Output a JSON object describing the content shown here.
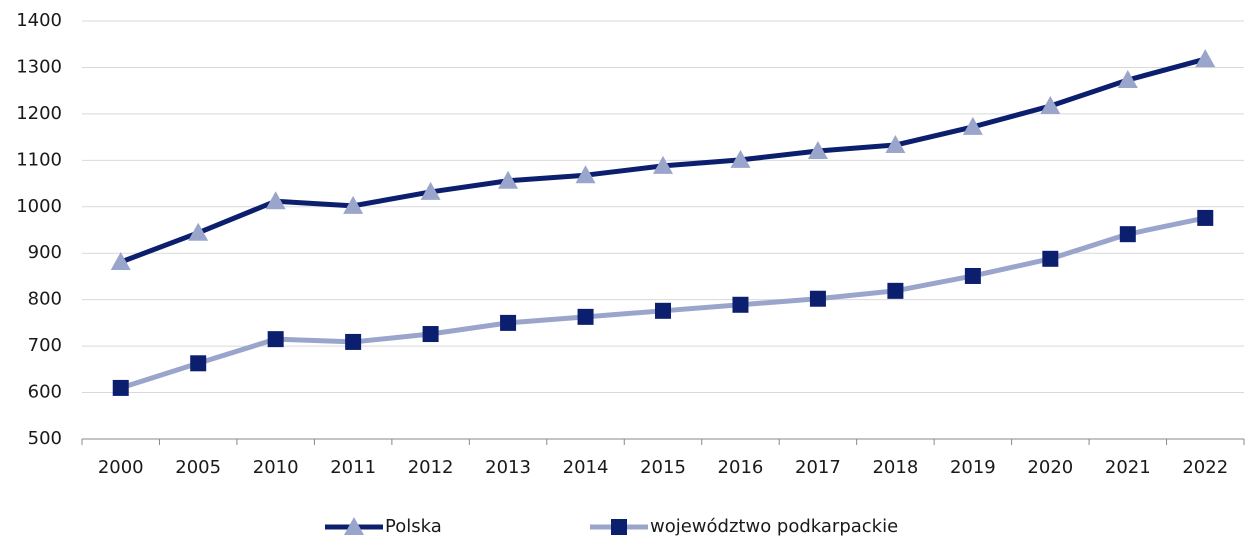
{
  "chart_data": {
    "type": "line",
    "categories": [
      "2000",
      "2005",
      "2010",
      "2011",
      "2012",
      "2013",
      "2014",
      "2015",
      "2016",
      "2017",
      "2018",
      "2019",
      "2020",
      "2021",
      "2022"
    ],
    "series": [
      {
        "name": "Polska",
        "color": "#0c1f6e",
        "marker_color": "#9aa5cc",
        "marker": "triangle",
        "values": [
          881,
          944,
          1012,
          1002,
          1032,
          1056,
          1068,
          1088,
          1101,
          1120,
          1133,
          1172,
          1217,
          1273,
          1318
        ]
      },
      {
        "name": "województwo podkarpackie",
        "color": "#9aa5cc",
        "marker_color": "#0c1f6e",
        "marker": "square",
        "values": [
          610,
          663,
          715,
          709,
          726,
          750,
          763,
          776,
          789,
          802,
          819,
          851,
          888,
          941,
          976
        ]
      }
    ],
    "ylim": [
      500,
      1400
    ],
    "yticks": [
      500,
      600,
      700,
      800,
      900,
      1000,
      1100,
      1200,
      1300,
      1400
    ],
    "grid": true,
    "legend": "bottom"
  }
}
